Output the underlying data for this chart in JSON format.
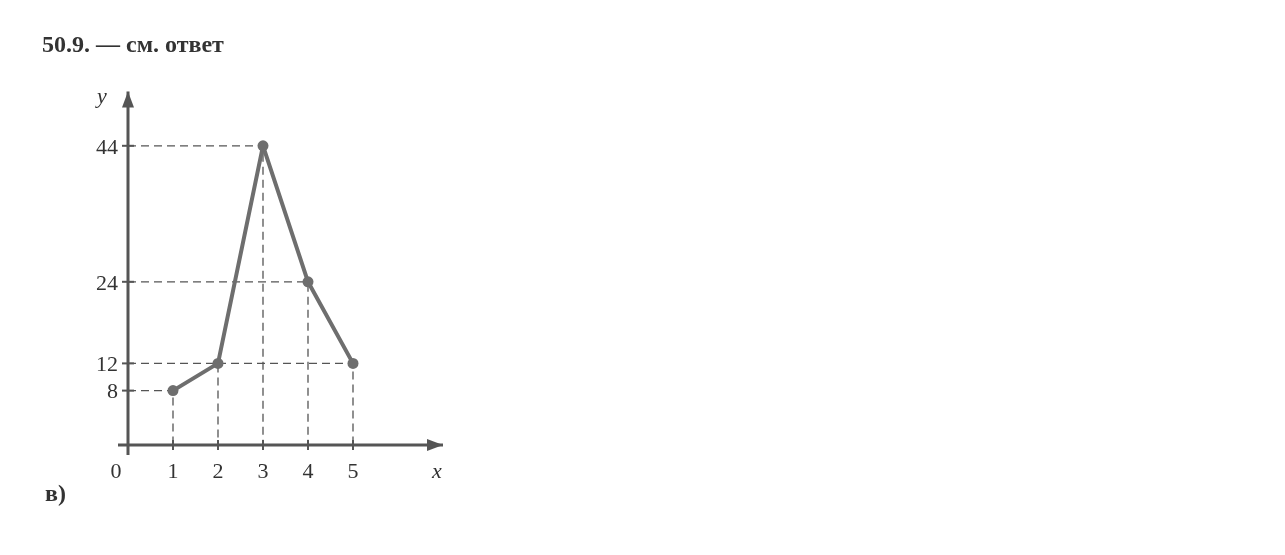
{
  "chart_data": {
    "type": "line",
    "title": "50.9. — см. ответ",
    "xlabel": "x",
    "ylabel": "y",
    "annotations": [
      "в)"
    ],
    "x": [
      1,
      2,
      3,
      4,
      5
    ],
    "series": [
      {
        "color": "#6e6e6e",
        "values": [
          8,
          12,
          44,
          24,
          12
        ]
      },
      {
        "color": "#555555",
        "x": [
          0,
          1,
          1
        ],
        "values": [
          8,
          8,
          0
        ],
        "line_style": "dashed",
        "marker": "none"
      },
      {
        "color": "#555555",
        "x": [
          0,
          2,
          2
        ],
        "values": [
          12,
          12,
          0
        ],
        "line_style": "dashed",
        "marker": "none"
      },
      {
        "color": "#555555",
        "x": [
          0,
          3,
          3
        ],
        "values": [
          44,
          44,
          0
        ],
        "line_style": "dashed",
        "marker": "none"
      },
      {
        "color": "#555555",
        "x": [
          0,
          4,
          4
        ],
        "values": [
          24,
          24,
          0
        ],
        "line_style": "dashed",
        "marker": "none"
      },
      {
        "color": "#555555",
        "x": [
          2,
          5,
          5
        ],
        "values": [
          12,
          12,
          0
        ],
        "line_style": "dashed",
        "marker": "none"
      }
    ],
    "xlim": [
      0,
      7
    ],
    "ylim": [
      0,
      52
    ],
    "xticks": [
      0,
      1,
      2,
      3,
      4,
      5
    ],
    "yticks": [
      8,
      12,
      24,
      44
    ],
    "grid": false,
    "marker": "circle",
    "line_style": "solid"
  }
}
